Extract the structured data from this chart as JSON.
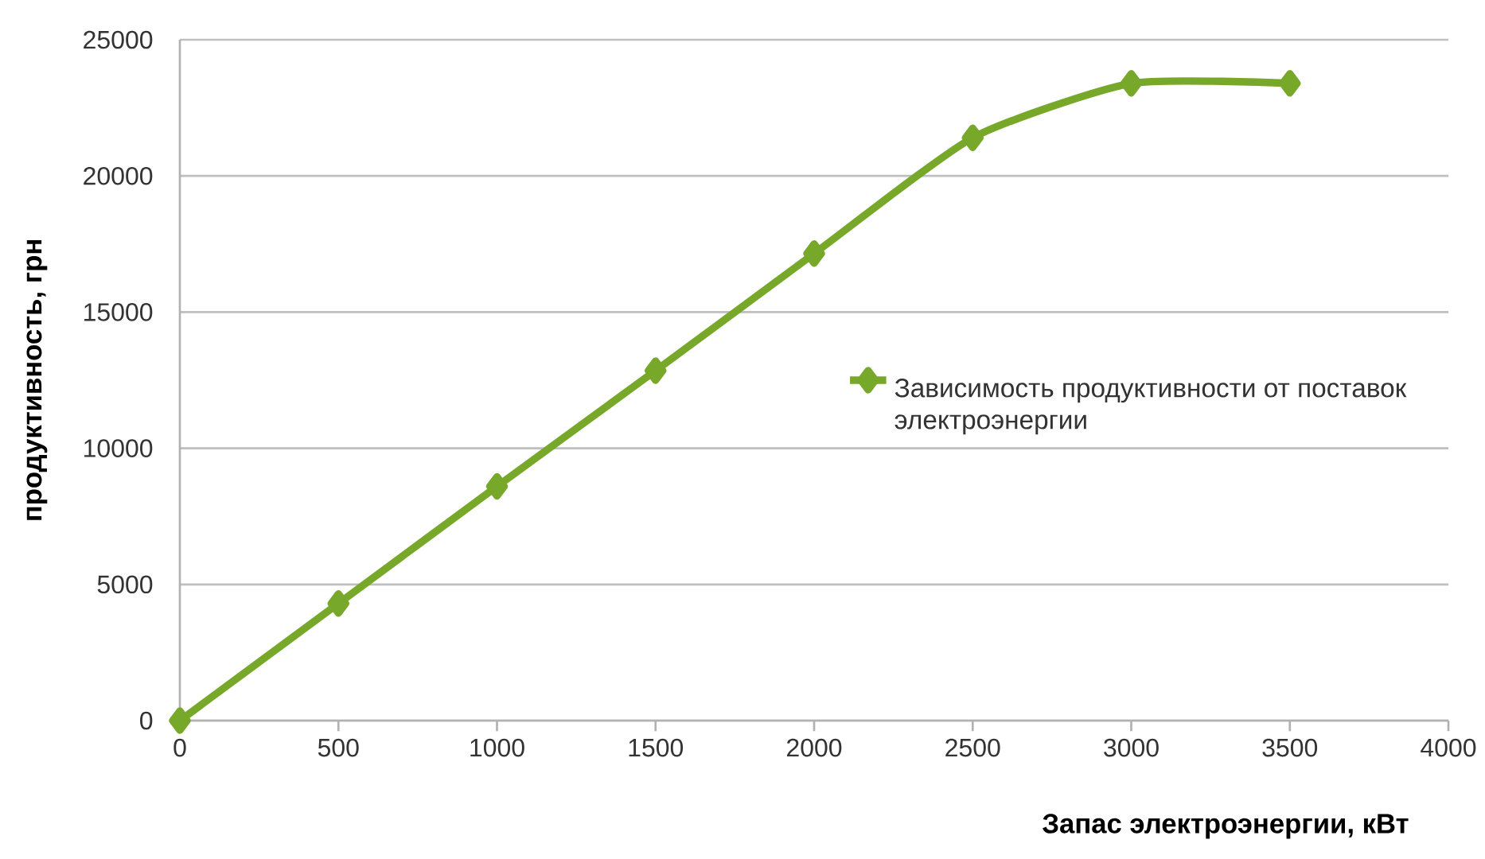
{
  "chart_data": {
    "type": "line",
    "xlabel": "Запас электроэнергии, кВт",
    "ylabel": "продуктивность, грн",
    "x": [
      0,
      500,
      1000,
      1500,
      2000,
      2500,
      3000,
      3500
    ],
    "series": [
      {
        "name": "Зависимость продуктивности от поставок электроэнергии",
        "color": "#77a82a",
        "values": [
          0,
          4300,
          8600,
          12850,
          17150,
          21400,
          23400,
          23400
        ]
      }
    ],
    "xlim": [
      0,
      4000
    ],
    "xticks": [
      0,
      500,
      1000,
      1500,
      2000,
      2500,
      3000,
      3500,
      4000
    ],
    "ylim": [
      0,
      25000
    ],
    "yticks": [
      0,
      5000,
      10000,
      15000,
      20000,
      25000
    ],
    "grid": "y",
    "legend": "right",
    "marker": "diamond",
    "line_style": "solid"
  }
}
